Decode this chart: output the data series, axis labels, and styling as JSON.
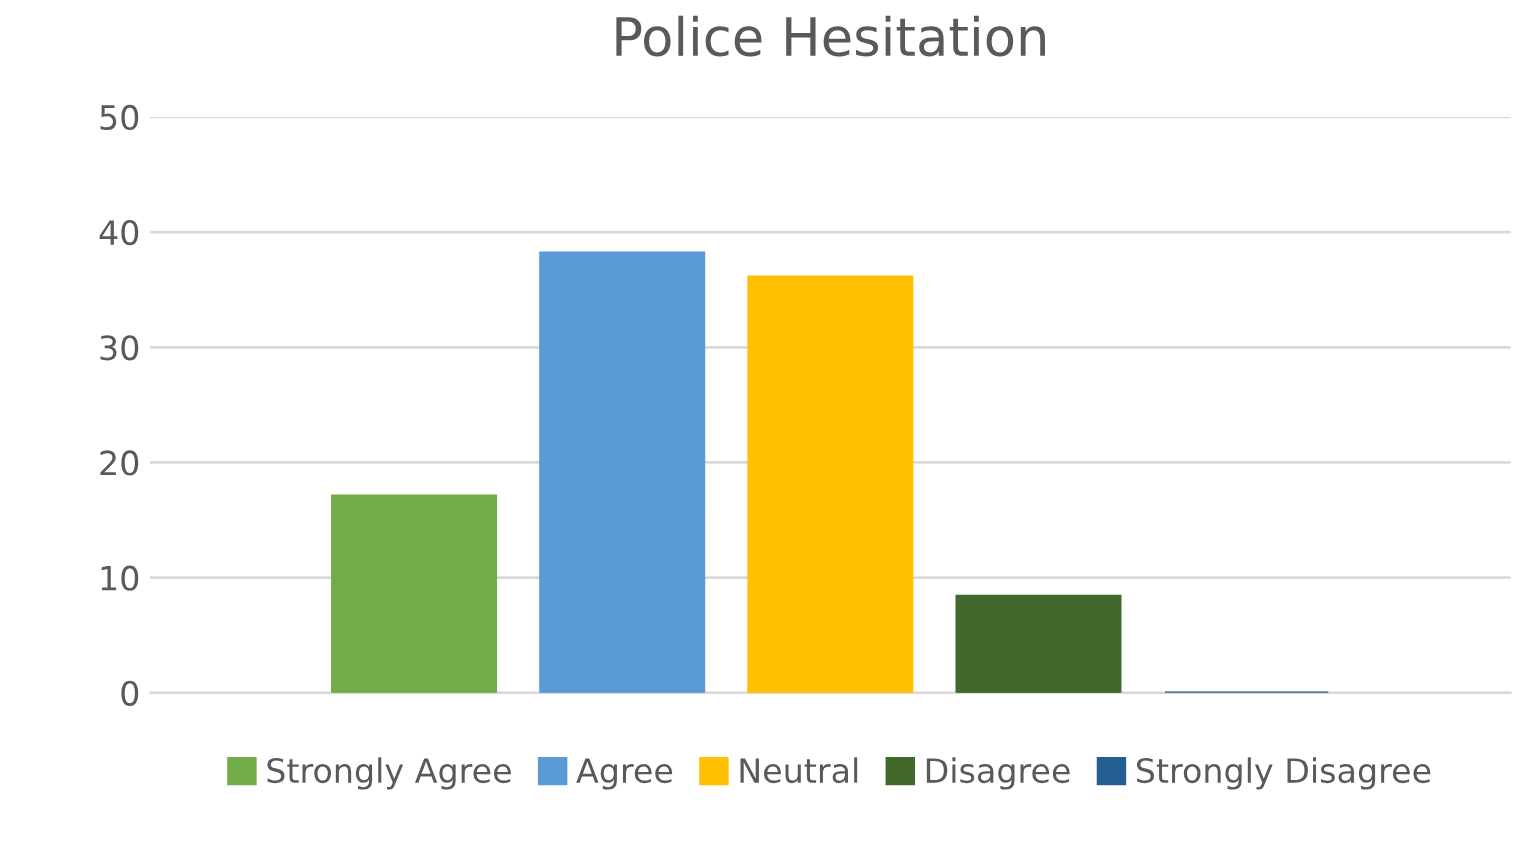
{
  "chart_data": {
    "type": "bar",
    "title": "Police Hesitation",
    "categories": [
      null
    ],
    "series": [
      {
        "name": "Strongly Agree",
        "color": "#70ad47",
        "values": [
          17.1
        ]
      },
      {
        "name": "Agree",
        "color": "#5b9bd5",
        "values": [
          38.2
        ]
      },
      {
        "name": "Neutral",
        "color": "#ffc000",
        "values": [
          36.1
        ]
      },
      {
        "name": "Disagree",
        "color": "#43682b",
        "values": [
          8.4
        ]
      },
      {
        "name": "Strongly Disagree",
        "color": "#255e91",
        "values": [
          0
        ]
      }
    ],
    "ylim": [
      0,
      50
    ],
    "yticks": [
      0,
      10,
      20,
      30,
      40,
      50
    ],
    "grid": "y",
    "legend": "bottom"
  }
}
